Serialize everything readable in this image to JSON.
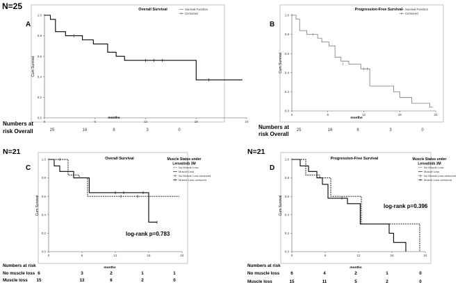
{
  "figure": {
    "n_top": "N=25",
    "n_bottom_left": "N=21",
    "n_bottom_right": "N=21"
  },
  "chart_data": [
    {
      "panel": "A",
      "type": "line",
      "title": "Overall Survival",
      "xlabel": "months",
      "ylabel": "Cum Survival",
      "xlim": [
        0,
        24
      ],
      "ylim": [
        0,
        1.0
      ],
      "xticks": [
        "0",
        "6",
        "12",
        "18",
        "24"
      ],
      "yticks": [
        "0.0",
        "0.2",
        "0.4",
        "0.6",
        "0.8",
        "1.0"
      ],
      "legend": [
        "Survival Function",
        "Censored"
      ],
      "series": [
        {
          "name": "Survival Function",
          "style": "solid",
          "steps": [
            [
              0,
              1.0
            ],
            [
              0.7,
              0.96
            ],
            [
              1.3,
              0.84
            ],
            [
              2.5,
              0.8
            ],
            [
              4.5,
              0.76
            ],
            [
              5.8,
              0.72
            ],
            [
              7.5,
              0.64
            ],
            [
              8.5,
              0.6
            ],
            [
              9.5,
              0.56
            ],
            [
              18,
              0.37
            ],
            [
              23.5,
              0.37
            ]
          ],
          "censored": [
            [
              3.5,
              0.8
            ],
            [
              12,
              0.56
            ],
            [
              13,
              0.56
            ],
            [
              14,
              0.56
            ],
            [
              19.5,
              0.37
            ]
          ]
        }
      ],
      "risk_table": {
        "header": "Numbers at risk Overall",
        "header_lines": [
          "Numbers at",
          "risk Overall"
        ],
        "rows": [
          {
            "label": "",
            "values": [
              "25",
              "16",
              "8",
              "3",
              "0"
            ]
          }
        ]
      }
    },
    {
      "panel": "B",
      "type": "line",
      "title": "Progression-Free Survival",
      "xlabel": "months",
      "ylabel": "Cum Survival",
      "xlim": [
        0,
        24
      ],
      "ylim": [
        0,
        1.0
      ],
      "xticks": [
        "0",
        "6",
        "12",
        "18",
        "24"
      ],
      "yticks": [
        "0.0",
        "0.2",
        "0.4",
        "0.6",
        "0.8",
        "1.0"
      ],
      "legend": [
        "Survival Function",
        "Censored"
      ],
      "series": [
        {
          "name": "Survival Function",
          "style": "solid",
          "steps": [
            [
              0,
              1.0
            ],
            [
              0.7,
              0.96
            ],
            [
              1.3,
              0.84
            ],
            [
              2.5,
              0.8
            ],
            [
              4.3,
              0.76
            ],
            [
              5.0,
              0.72
            ],
            [
              6.2,
              0.68
            ],
            [
              7.2,
              0.56
            ],
            [
              8.2,
              0.52
            ],
            [
              9.5,
              0.49
            ],
            [
              11.5,
              0.44
            ],
            [
              13,
              0.26
            ],
            [
              17,
              0.2
            ],
            [
              18,
              0.14
            ],
            [
              20,
              0.08
            ],
            [
              23,
              0.04
            ],
            [
              23.5,
              0.04
            ]
          ],
          "censored": [
            [
              3.5,
              0.8
            ],
            [
              8.5,
              0.49
            ],
            [
              12,
              0.44
            ],
            [
              12.6,
              0.44
            ]
          ]
        }
      ],
      "risk_table": {
        "header": "Numbers at risk Overall",
        "header_lines": [
          "Numbers at",
          "risk Overall"
        ],
        "rows": [
          {
            "label": "",
            "values": [
              "25",
              "16",
              "8",
              "3",
              "0"
            ]
          }
        ]
      }
    },
    {
      "panel": "C",
      "type": "line",
      "title": "Overall Survival",
      "xlabel": "months",
      "ylabel": "Cum Survival",
      "xlim": [
        0,
        24
      ],
      "ylim": [
        0,
        1.0
      ],
      "xticks": [
        "0",
        "6",
        "12",
        "18",
        "24"
      ],
      "yticks": [
        "0.0",
        "0.2",
        "0.4",
        "0.6",
        "0.8",
        "1.0"
      ],
      "legend_title": "Muscle Status under Lenvatinib 3M",
      "legend_title_lines": [
        "Muscle Status under",
        "Lenvatinib 3M"
      ],
      "legend": [
        "No Muscle Loss",
        "Muscle Loss",
        "No Muscle Loss-censored",
        "Muscle Loss-censored"
      ],
      "annotation": "log-rank p=0.783",
      "series": [
        {
          "name": "No Muscle Loss",
          "style": "dashed",
          "steps": [
            [
              0,
              1.0
            ],
            [
              3.5,
              0.83
            ],
            [
              5.5,
              0.8
            ],
            [
              7.0,
              0.6
            ],
            [
              23.5,
              0.6
            ]
          ],
          "censored": [
            [
              2.0,
              1.0
            ],
            [
              13,
              0.6
            ],
            [
              16,
              0.6
            ]
          ]
        },
        {
          "name": "Muscle Loss",
          "style": "solid",
          "steps": [
            [
              0,
              1.0
            ],
            [
              1.0,
              0.93
            ],
            [
              2.0,
              0.87
            ],
            [
              4.5,
              0.8
            ],
            [
              7.3,
              0.64
            ],
            [
              18,
              0.32
            ],
            [
              19.5,
              0.32
            ]
          ],
          "censored": [
            [
              12,
              0.64
            ],
            [
              13.5,
              0.64
            ],
            [
              17,
              0.64
            ],
            [
              19.5,
              0.32
            ]
          ]
        }
      ],
      "risk_table": {
        "header": "Numbers at risk",
        "rows": [
          {
            "label": "No muscle loss",
            "values": [
              "6",
              "3",
              "2",
              "1",
              "1"
            ]
          },
          {
            "label": "Muscle loss",
            "values": [
              "15",
              "13",
              "6",
              "2",
              "0"
            ]
          }
        ]
      }
    },
    {
      "panel": "D",
      "type": "line",
      "title": "Progression-Free Survival",
      "xlabel": "months",
      "ylabel": "Cum Survival",
      "xlim": [
        0,
        24
      ],
      "ylim": [
        0,
        1.0
      ],
      "xticks": [
        "0",
        "6",
        "12",
        "18",
        "24"
      ],
      "yticks": [
        "0.0",
        "0.2",
        "0.4",
        "0.6",
        "0.8",
        "1.0"
      ],
      "legend_title": "Muscle Status under Lenvatinib 3M",
      "legend_title_lines": [
        "Muscle Status under",
        "Lenvatinib 3M"
      ],
      "legend": [
        "No Muscle Loss",
        "Muscle Loss",
        "No Muscle Loss-censored",
        "Muscle Loss-censored"
      ],
      "annotation": "log-rank p=0.396",
      "series": [
        {
          "name": "No Muscle Loss",
          "style": "dashed",
          "steps": [
            [
              0,
              1.0
            ],
            [
              2.5,
              0.83
            ],
            [
              5.0,
              0.8
            ],
            [
              7.0,
              0.6
            ],
            [
              12.5,
              0.3
            ],
            [
              23,
              0.0
            ]
          ],
          "censored": []
        },
        {
          "name": "Muscle Loss",
          "style": "solid",
          "steps": [
            [
              0,
              1.0
            ],
            [
              1.5,
              0.93
            ],
            [
              3.0,
              0.87
            ],
            [
              4.5,
              0.8
            ],
            [
              5.5,
              0.73
            ],
            [
              6.5,
              0.58
            ],
            [
              10.0,
              0.52
            ],
            [
              12.3,
              0.3
            ],
            [
              17.5,
              0.2
            ],
            [
              18.3,
              0.1
            ],
            [
              20.5,
              0.0
            ]
          ],
          "censored": [
            [
              9.0,
              0.58
            ]
          ]
        }
      ],
      "risk_table": {
        "header": "Numbers at risk",
        "rows": [
          {
            "label": "No muscle loss",
            "values": [
              "6",
              "4",
              "2",
              "1",
              "0"
            ]
          },
          {
            "label": "Muscle loss",
            "values": [
              "15",
              "11",
              "5",
              "2",
              "0"
            ]
          }
        ]
      }
    }
  ]
}
